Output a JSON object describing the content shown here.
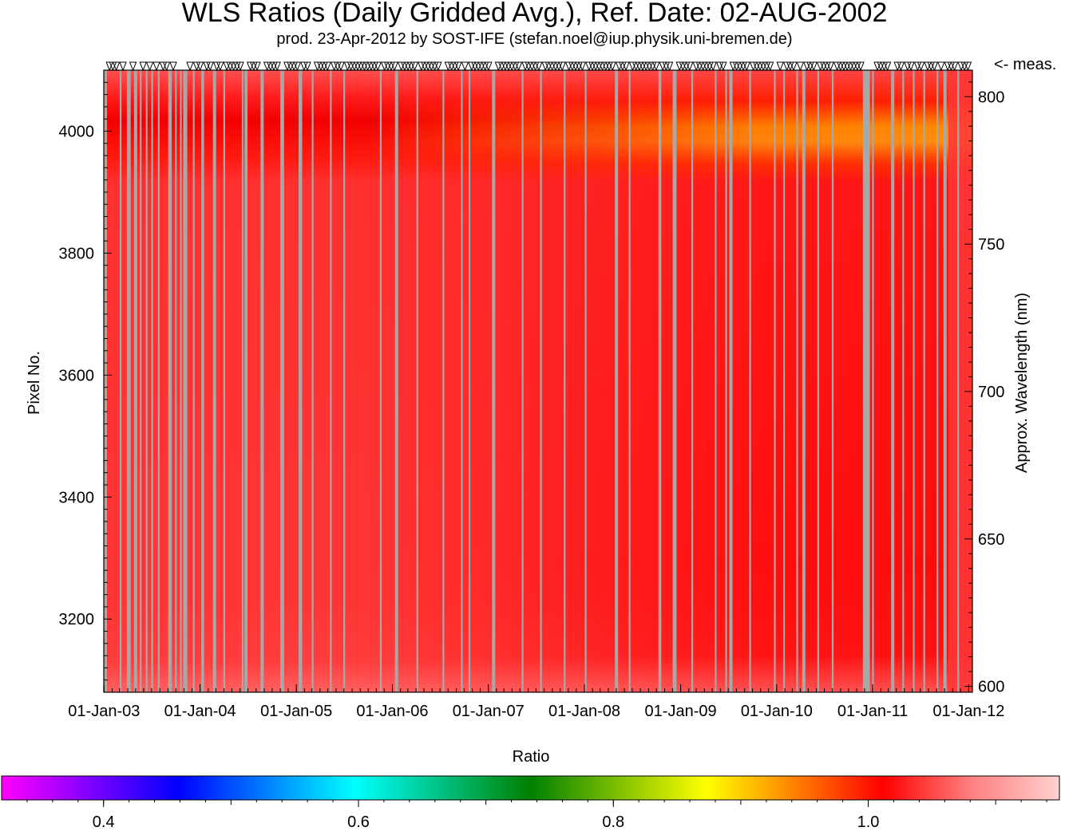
{
  "chart_data": {
    "type": "heatmap",
    "title": "WLS Ratios (Daily Gridded Avg.), Ref. Date: 02-AUG-2002",
    "subtitle": "prod. 23-Apr-2012 by SOST-IFE (stefan.noel@iup.physik.uni-bremen.de)",
    "measurement_marker_label": "<- meas.",
    "xlabel": "",
    "ylabel": "Pixel No.",
    "y2label": "Approx. Wavelength (nm)",
    "x_ticks": [
      "01-Jan-03",
      "01-Jan-04",
      "01-Jan-05",
      "01-Jan-06",
      "01-Jan-07",
      "01-Jan-08",
      "01-Jan-09",
      "01-Jan-10",
      "01-Jan-11",
      "01-Jan-12"
    ],
    "x_range": [
      "2002-12-31",
      "2012-01-15"
    ],
    "ylim": [
      3080,
      4100
    ],
    "y_ticks": [
      3200,
      3400,
      3600,
      3800,
      4000
    ],
    "y2lim": [
      598,
      809
    ],
    "y2_ticks": [
      600,
      650,
      700,
      750,
      800
    ],
    "colorbar": {
      "label": "Ratio",
      "range": [
        0.32,
        1.15
      ],
      "ticks": [
        0.4,
        0.6,
        0.8,
        1.0
      ],
      "tick_labels": [
        "0.4",
        "0.6",
        "0.8",
        "1.0"
      ],
      "colors": [
        "#ff00ff",
        "#8000ff",
        "#0000ff",
        "#0080ff",
        "#00ffff",
        "#00c080",
        "#008000",
        "#80c000",
        "#ffff00",
        "#ff8000",
        "#ff0000",
        "#ff8080",
        "#ffd0d0"
      ]
    },
    "data_gaps": [
      "2003-01-06",
      "2003-03-05",
      "2003-04-01",
      "2003-04-05",
      "2003-04-09",
      "2003-05-01",
      "2003-05-20",
      "2003-06-12",
      "2003-07-03",
      "2003-07-28",
      "2003-09-08",
      "2003-09-12",
      "2003-10-01",
      "2003-10-20",
      "2003-11-01",
      "2003-11-05",
      "2003-11-10",
      "2003-12-08",
      "2004-01-09",
      "2004-01-13",
      "2004-02-25",
      "2004-04-02",
      "2004-06-11",
      "2004-06-21",
      "2004-06-26",
      "2004-08-24",
      "2004-11-04",
      "2004-11-08",
      "2004-11-12",
      "2005-01-13",
      "2005-01-17",
      "2005-03-04",
      "2005-05-12",
      "2005-07-02",
      "2005-11-18",
      "2006-01-17",
      "2006-04-06",
      "2006-07-14",
      "2006-09-22",
      "2006-10-21",
      "2007-01-21",
      "2007-05-11",
      "2007-07-20",
      "2007-10-18",
      "2008-01-06",
      "2008-05-02",
      "2008-06-21",
      "2008-10-12",
      "2008-10-16",
      "2008-12-05",
      "2008-12-09",
      "2008-12-13",
      "2009-02-14",
      "2009-05-14",
      "2009-06-23",
      "2009-07-11",
      "2009-09-22",
      "2009-12-25",
      "2010-01-29",
      "2010-03-20",
      "2010-04-14",
      "2010-06-08",
      "2010-08-02",
      "2010-11-28",
      "2010-12-02",
      "2010-12-06",
      "2010-12-10",
      "2010-12-14",
      "2010-12-18",
      "2011-01-02",
      "2011-03-18",
      "2011-04-27",
      "2011-06-06",
      "2011-07-16",
      "2011-09-04",
      "2011-10-03",
      "2011-11-22"
    ],
    "features": [
      {
        "pixel_range": [
          3940,
          4030
        ],
        "ratio": 0.92,
        "period": "2006-2011"
      },
      {
        "pixel_range": [
          3090,
          3900
        ],
        "ratio": 1.02,
        "period": "2003-2007"
      },
      {
        "pixel_range": [
          3090,
          3900
        ],
        "ratio": 0.99,
        "period": "2009-2012"
      }
    ]
  }
}
